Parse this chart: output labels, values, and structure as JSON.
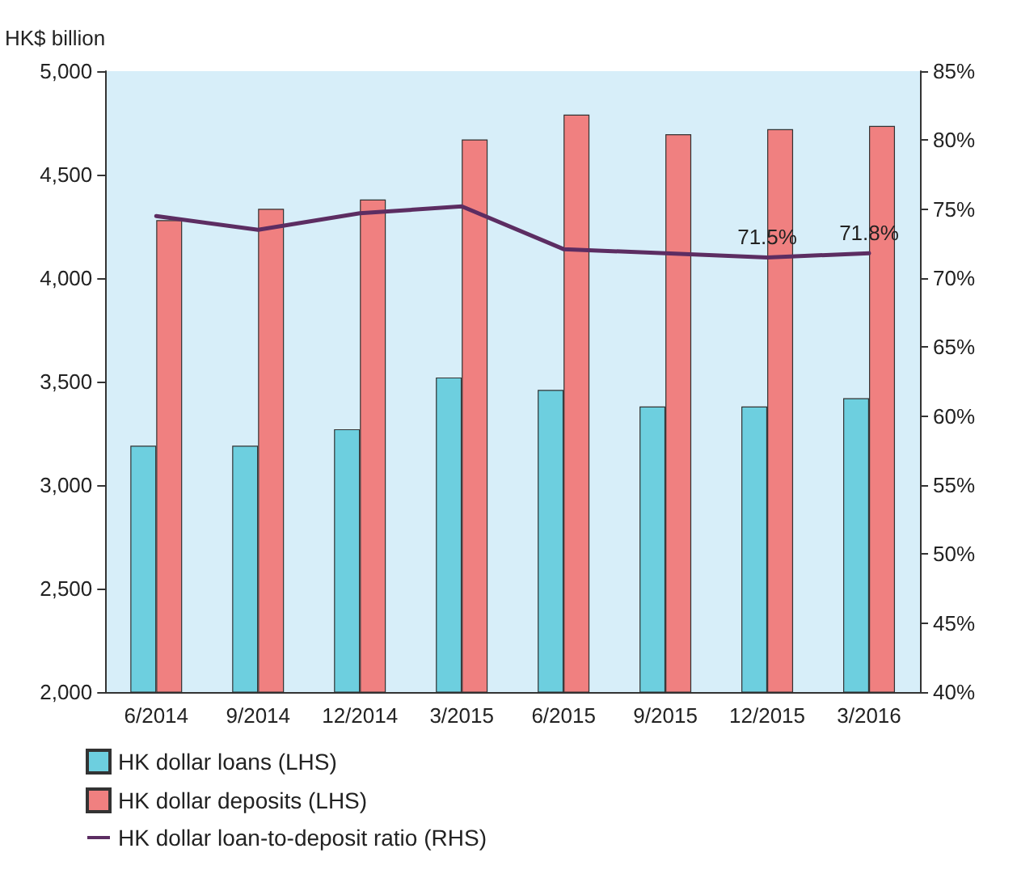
{
  "chart_data": {
    "type": "bar",
    "ylabel": "HK$ billion",
    "categories": [
      "6/2014",
      "9/2014",
      "12/2014",
      "3/2015",
      "6/2015",
      "9/2015",
      "12/2015",
      "3/2016"
    ],
    "series": [
      {
        "name": "HK dollar loans (LHS)",
        "color": "#6dcfdf",
        "values": [
          3190,
          3190,
          3270,
          3520,
          3460,
          3380,
          3380,
          3420
        ]
      },
      {
        "name": "HK dollar deposits (LHS)",
        "color": "#f08080",
        "values": [
          4280,
          4335,
          4380,
          4670,
          4790,
          4695,
          4720,
          4735
        ]
      },
      {
        "name": "HK dollar loan-to-deposit ratio (RHS)",
        "type": "line",
        "axis": "y2",
        "color": "#5c2d62",
        "values": [
          74.5,
          73.5,
          74.7,
          75.2,
          72.1,
          71.8,
          71.5,
          71.8
        ],
        "value_labels": [
          null,
          null,
          null,
          null,
          null,
          null,
          "71.5%",
          "71.8%"
        ]
      }
    ],
    "ylim": [
      2000,
      5000
    ],
    "yticks": [
      {
        "value": 2000,
        "label": "2,000"
      },
      {
        "value": 2500,
        "label": "2,500"
      },
      {
        "value": 3000,
        "label": "3,000"
      },
      {
        "value": 3500,
        "label": "3,500"
      },
      {
        "value": 4000,
        "label": "4,000"
      },
      {
        "value": 4500,
        "label": "4,500"
      },
      {
        "value": 5000,
        "label": "5,000"
      }
    ],
    "y2lim": [
      40,
      85
    ],
    "y2ticks": [
      {
        "value": 40,
        "label": "40%"
      },
      {
        "value": 45,
        "label": "45%"
      },
      {
        "value": 50,
        "label": "50%"
      },
      {
        "value": 55,
        "label": "55%"
      },
      {
        "value": 60,
        "label": "60%"
      },
      {
        "value": 65,
        "label": "65%"
      },
      {
        "value": 70,
        "label": "70%"
      },
      {
        "value": 75,
        "label": "75%"
      },
      {
        "value": 80,
        "label": "80%"
      },
      {
        "value": 85,
        "label": "85%"
      }
    ],
    "grid": false,
    "legend": "bottom",
    "marker": "none"
  }
}
